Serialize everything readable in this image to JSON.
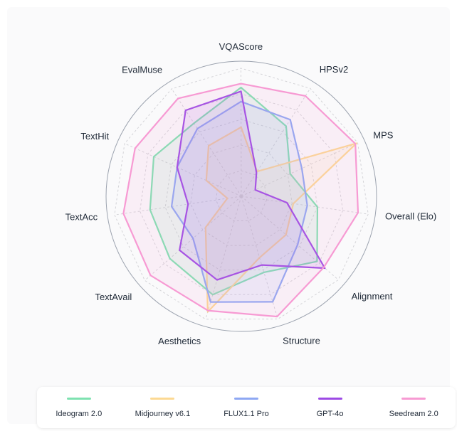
{
  "chart_data": {
    "type": "radar",
    "title": "",
    "axes": [
      "Overall (Elo)",
      "Alignment",
      "Structure",
      "Aesthetics",
      "TextAvail",
      "TextAcc",
      "TextHit",
      "EvalMuse",
      "VQAScore",
      "HPSv2",
      "MPS"
    ],
    "range": [
      0,
      1
    ],
    "grid": true,
    "legend_position": "bottom",
    "series": [
      {
        "name": "Ideogram 2.0",
        "color": "#7ee2b0",
        "values": [
          0.6,
          0.78,
          0.62,
          0.8,
          0.74,
          0.72,
          0.75,
          0.68,
          0.85,
          0.65,
          0.42
        ]
      },
      {
        "name": "Midjourney v6.1",
        "color": "#fcd993",
        "values": [
          0.41,
          0.46,
          0.5,
          0.94,
          0.37,
          0.11,
          0.3,
          0.47,
          0.54,
          0.23,
          0.99
        ]
      },
      {
        "name": "FLUX1.1 Pro",
        "color": "#8ea8f3",
        "values": [
          0.52,
          0.58,
          0.86,
          0.86,
          0.5,
          0.55,
          0.55,
          0.63,
          0.74,
          0.71,
          0.52
        ]
      },
      {
        "name": "GPT-4o",
        "color": "#9d4ae5",
        "values": [
          0.36,
          0.86,
          0.56,
          0.68,
          0.64,
          0.42,
          0.55,
          0.8,
          0.82,
          0.22,
          0.12
        ]
      },
      {
        "name": "Seedream 2.0",
        "color": "#f79ad3",
        "values": [
          0.92,
          0.85,
          0.98,
          0.93,
          0.94,
          0.93,
          0.91,
          0.91,
          0.88,
          0.93,
          0.98
        ]
      }
    ]
  }
}
